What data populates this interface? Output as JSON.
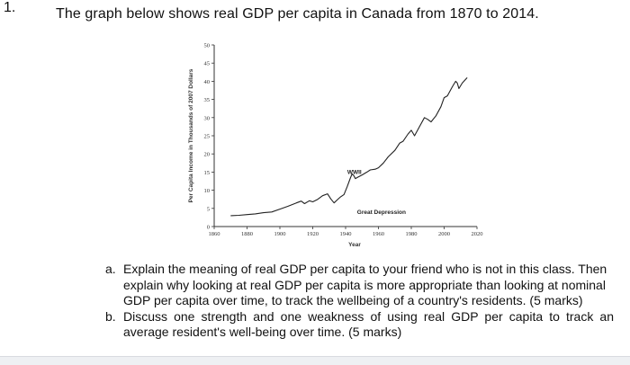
{
  "question": {
    "number": "1.",
    "prompt": "The graph below shows real GDP per capita in Canada from 1870 to 2014."
  },
  "chart_data": {
    "type": "line",
    "title": "",
    "xlabel": "Year",
    "ylabel": "Per Capita Income in Thousands of 2007 Dollars",
    "xlim": [
      1860,
      2020
    ],
    "ylim": [
      0,
      50
    ],
    "x_ticks": [
      "1860",
      "1880",
      "1900",
      "1920",
      "1940",
      "1960",
      "1980",
      "2000",
      "2020"
    ],
    "y_ticks": [
      "0",
      "5",
      "10",
      "15",
      "20",
      "25",
      "30",
      "35",
      "40",
      "45",
      "50"
    ],
    "grid": false,
    "annotations": [
      {
        "text": "WWII",
        "x": 1941,
        "y": 14.5
      },
      {
        "text": "Great Depression",
        "x": 1947,
        "y": 3.5
      }
    ],
    "series": [
      {
        "x": [
          1870,
          1875,
          1880,
          1885,
          1890,
          1895,
          1900,
          1905,
          1910,
          1913,
          1915,
          1918,
          1920,
          1923,
          1926,
          1929,
          1931,
          1933,
          1935,
          1937,
          1939,
          1941,
          1943,
          1944,
          1945,
          1946,
          1947,
          1950,
          1953,
          1955,
          1958,
          1960,
          1963,
          1966,
          1970,
          1973,
          1975,
          1978,
          1980,
          1982,
          1985,
          1988,
          1990,
          1992,
          1995,
          1998,
          2000,
          2002,
          2005,
          2007,
          2008,
          2009,
          2011,
          2014
        ],
        "y": [
          3.0,
          3.1,
          3.3,
          3.5,
          3.8,
          4.0,
          4.8,
          5.6,
          6.5,
          7.0,
          6.3,
          7.1,
          6.8,
          7.5,
          8.5,
          9.0,
          7.6,
          6.5,
          7.4,
          8.2,
          8.8,
          11.0,
          13.5,
          14.5,
          14.0,
          13.2,
          13.5,
          14.2,
          15.0,
          15.6,
          15.8,
          16.2,
          17.5,
          19.2,
          21.0,
          23.0,
          23.5,
          25.5,
          26.5,
          25.0,
          27.5,
          30.0,
          29.5,
          28.8,
          30.5,
          33.0,
          35.5,
          36.0,
          38.5,
          40.0,
          39.5,
          38.0,
          39.5,
          41.0
        ]
      }
    ]
  },
  "parts": [
    {
      "label": "a.",
      "text": "Explain the meaning of real GDP per capita to your friend who is not in this class. Then explain why looking at real GDP per capita is more appropriate than looking at nominal GDP per capita over time, to track the wellbeing of a country's residents. (5 marks)"
    },
    {
      "label": "b.",
      "text": "Discuss one strength and one weakness of using real GDP per capita to track an average resident's well-being over time. (5 marks)"
    }
  ]
}
